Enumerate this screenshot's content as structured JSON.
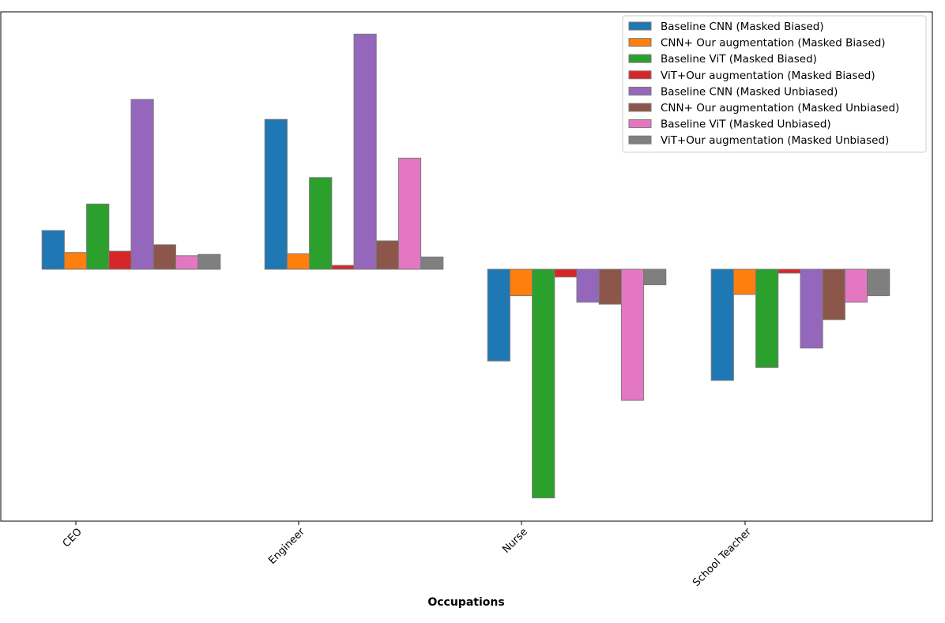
{
  "chart_data": {
    "type": "bar",
    "title": "",
    "xlabel": "Occupations",
    "ylabel": "",
    "categories": [
      "CEO",
      "Engineer",
      "Nurse",
      "School Teacher"
    ],
    "ylim": [
      -0.39,
      0.4
    ],
    "grid": false,
    "legend_position": "top-right",
    "series": [
      {
        "name": "Baseline CNN (Masked Biased)",
        "color": "#1f77b4",
        "values": [
          0.06,
          0.232,
          -0.142,
          -0.172
        ]
      },
      {
        "name": "CNN+ Our augmentation (Masked Biased)",
        "color": "#ff7f0e",
        "values": [
          0.026,
          0.024,
          -0.041,
          -0.039
        ]
      },
      {
        "name": "Baseline ViT (Masked Biased)",
        "color": "#2ca02c",
        "values": [
          0.101,
          0.142,
          -0.354,
          -0.152
        ]
      },
      {
        "name": "ViT+Our augmentation (Masked Biased)",
        "color": "#d62728",
        "values": [
          0.028,
          0.006,
          -0.012,
          -0.006
        ]
      },
      {
        "name": "Baseline CNN (Masked Unbiased)",
        "color": "#9467bd",
        "values": [
          0.263,
          0.364,
          -0.051,
          -0.122
        ]
      },
      {
        "name": "CNN+ Our augmentation (Masked Unbiased)",
        "color": "#8c564b",
        "values": [
          0.038,
          0.044,
          -0.054,
          -0.078
        ]
      },
      {
        "name": "Baseline ViT (Masked Unbiased)",
        "color": "#e377c2",
        "values": [
          0.021,
          0.172,
          -0.203,
          -0.051
        ]
      },
      {
        "name": "ViT+Our augmentation (Masked Unbiased)",
        "color": "#7f7f7f",
        "values": [
          0.023,
          0.019,
          -0.024,
          -0.041
        ]
      }
    ]
  }
}
